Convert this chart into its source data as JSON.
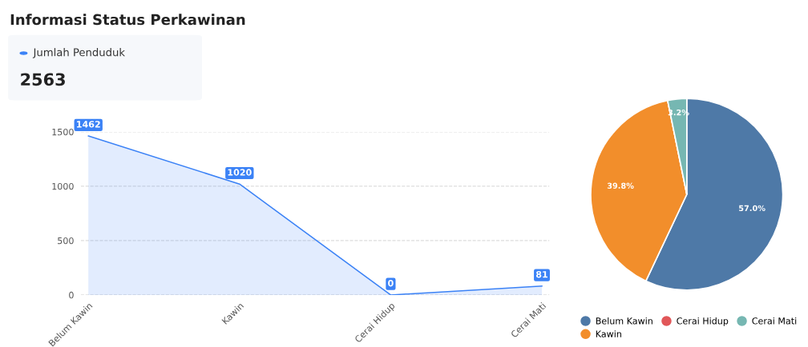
{
  "chart_data": [
    {
      "type": "other",
      "title": "Informasi Status Perkawinan",
      "annotations": [
        "Jumlah Penduduk",
        "2563"
      ],
      "color": "#3b82f6"
    },
    {
      "type": "area",
      "categories": [
        "Belum Kawin",
        "Kawin",
        "Cerai Hidup",
        "Cerai Mati"
      ],
      "series": [
        {
          "color": "#3b82f6",
          "values": [
            1462,
            1020,
            0,
            81
          ]
        }
      ],
      "ylim": [
        0,
        1500
      ],
      "yticks": [
        0,
        500,
        1000,
        1500
      ],
      "grid": "y",
      "line_style": "dashed",
      "data_labels": true
    },
    {
      "type": "pie",
      "categories": [
        "Belum Kawin",
        "Kawin",
        "Cerai Hidup",
        "Cerai Mati"
      ],
      "values": [
        57.0,
        39.8,
        0,
        3.2
      ],
      "value_labels": [
        "57.0%",
        "39.8%",
        null,
        "3.2%"
      ],
      "colors": [
        "#4e79a7",
        "#f28e2b",
        "#e15759",
        "#76b7b2"
      ],
      "legend": "bottom"
    }
  ]
}
